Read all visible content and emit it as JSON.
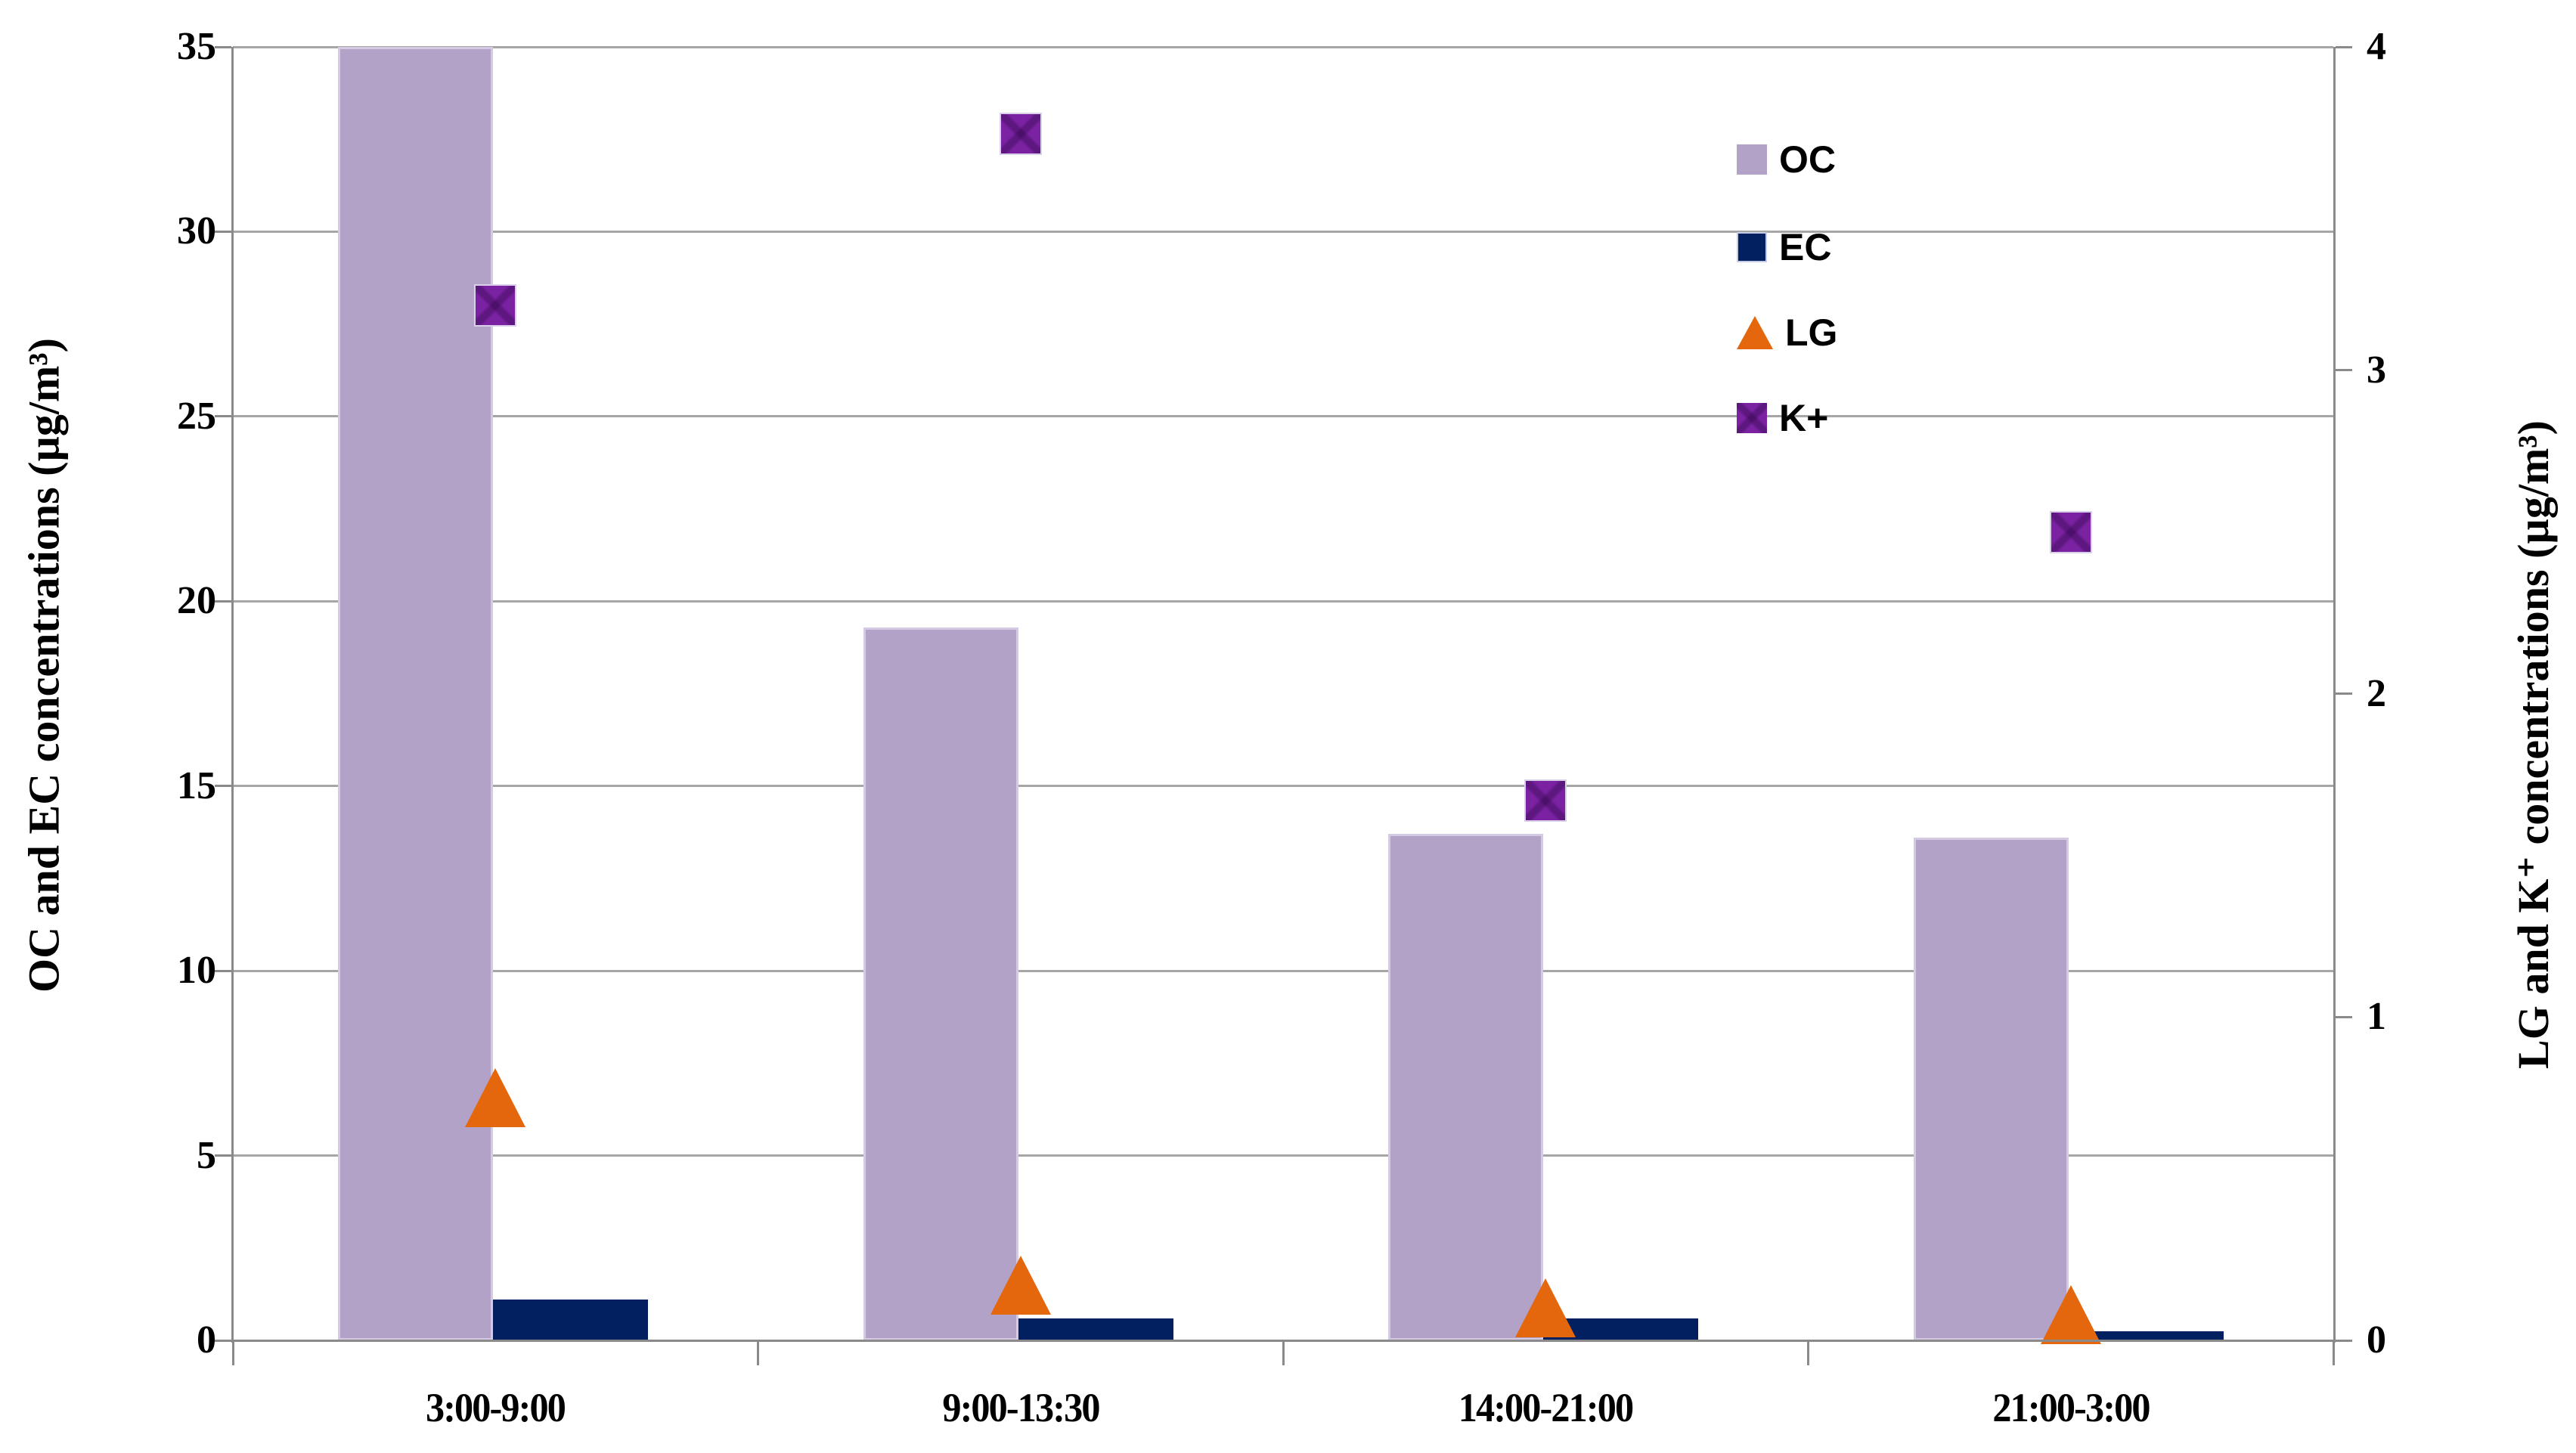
{
  "chart_data": {
    "type": "bar",
    "subtype": "combo-bar-scatter-dual-axis",
    "categories": [
      "3:00-9:00",
      "9:00-13:30",
      "14:00-21:00",
      "21:00-3:00"
    ],
    "series": [
      {
        "name": "OC",
        "type": "bar",
        "axis": "left",
        "marker": "square-light-purple",
        "color": "#b3a2c7",
        "values": [
          35,
          19.3,
          13.7,
          13.6
        ],
        "note": "first bar reaches axis maximum (clipped at 35)"
      },
      {
        "name": "EC",
        "type": "bar",
        "axis": "left",
        "marker": "square-navy",
        "color": "#02205f",
        "values": [
          1.1,
          0.6,
          0.6,
          0.25
        ]
      },
      {
        "name": "LG",
        "type": "scatter",
        "axis": "right",
        "marker": "triangle-orange",
        "color": "#e4670d",
        "values": [
          0.75,
          0.17,
          0.1,
          0.08
        ]
      },
      {
        "name": "K+",
        "type": "scatter",
        "axis": "right",
        "marker": "square-purple-x",
        "color": "#7a22a2",
        "values": [
          3.2,
          3.73,
          1.67,
          2.5
        ]
      }
    ],
    "left_axis": {
      "label": "OC and EC concentrations (µg/m³)",
      "min": 0,
      "max": 35,
      "step": 5,
      "ticks": [
        0,
        5,
        10,
        15,
        20,
        25,
        30,
        35
      ]
    },
    "right_axis": {
      "label": "LG and K⁺ concentrations (µg/m³)",
      "min": 0,
      "max": 4,
      "step": 1,
      "ticks": [
        0,
        1,
        2,
        3,
        4
      ]
    },
    "legend": {
      "position": "upper-right-inside",
      "entries": [
        "OC",
        "EC",
        "LG",
        "K+"
      ]
    },
    "grid": true,
    "gridline_color": "#a6a6a6",
    "background": "#ffffff"
  }
}
